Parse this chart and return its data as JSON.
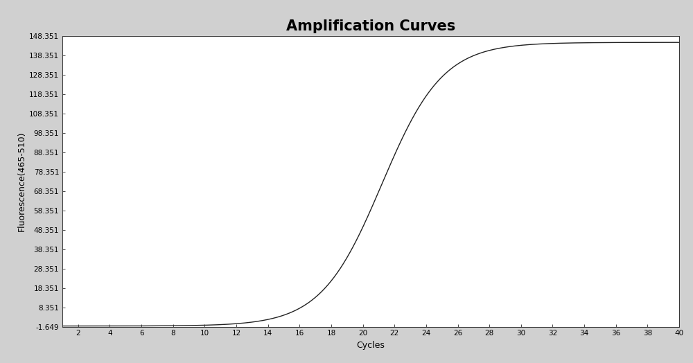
{
  "title": "Amplification Curves",
  "xlabel": "Cycles",
  "ylabel": "Fluorescence(465-510)",
  "x_min": 1,
  "x_max": 40,
  "y_min": -1.649,
  "y_max": 148.351,
  "yticks": [
    -1.649,
    8.351,
    18.351,
    28.351,
    38.351,
    48.351,
    58.351,
    68.351,
    78.351,
    88.351,
    98.351,
    108.351,
    118.351,
    128.351,
    138.351,
    148.351
  ],
  "xticks": [
    2,
    4,
    6,
    8,
    10,
    12,
    14,
    16,
    18,
    20,
    22,
    24,
    26,
    28,
    30,
    32,
    34,
    36,
    38,
    40
  ],
  "line_color": "#222222",
  "background_color": "#d0d0d0",
  "plot_bg_color": "#ffffff",
  "sigmoid_L": 146.5,
  "sigmoid_k": 0.52,
  "sigmoid_x0": 21.2,
  "baseline": -1.3,
  "title_fontsize": 15,
  "axis_label_fontsize": 9,
  "tick_fontsize": 7.5
}
